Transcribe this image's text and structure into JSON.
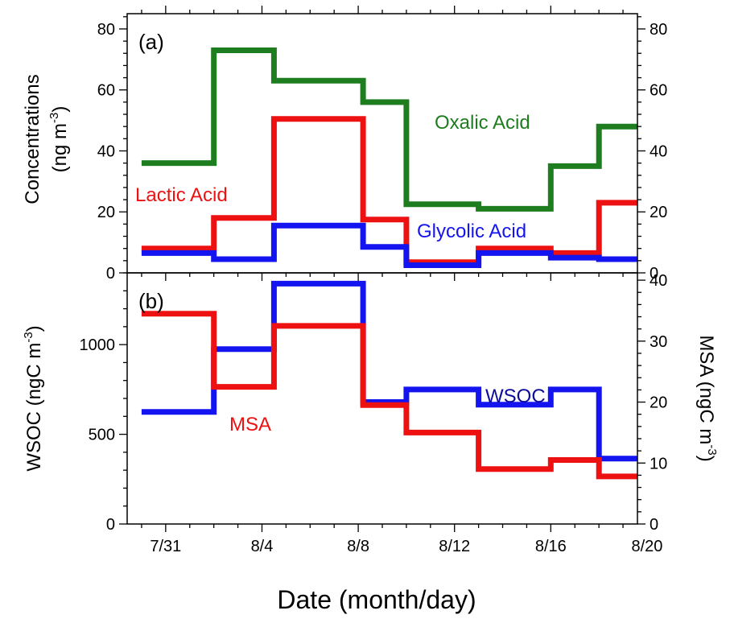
{
  "xlabel": "Date (month/day)",
  "chart_data": [
    {
      "type": "line",
      "panel_label": "(a)",
      "ylabel_lines": [
        "Concentrations",
        "(ng m",
        "-3",
        ")"
      ],
      "ylim": [
        0,
        85
      ],
      "y_ticks": [
        0,
        20,
        40,
        60,
        80
      ],
      "right_ylim": [
        0,
        85
      ],
      "right_y_ticks": [
        0,
        20,
        40,
        60,
        80
      ],
      "xlim": [
        29.4,
        50.6
      ],
      "x_ticks": [
        "7/31",
        "8/4",
        "8/8",
        "8/12",
        "8/16",
        "8/20"
      ],
      "series": [
        {
          "name": "Oxalic Acid",
          "color": "#1e7d1e",
          "steps": [
            [
              30,
              33,
              36
            ],
            [
              33,
              35.5,
              73
            ],
            [
              35.5,
              39.2,
              63
            ],
            [
              39.2,
              41,
              56
            ],
            [
              41,
              44,
              22.5
            ],
            [
              44,
              47,
              21
            ],
            [
              47,
              49,
              35
            ],
            [
              49,
              52,
              48
            ]
          ]
        },
        {
          "name": "Lactic Acid",
          "color": "#ee1111",
          "steps": [
            [
              30,
              33,
              8
            ],
            [
              33,
              35.5,
              18
            ],
            [
              35.5,
              39.2,
              50.5
            ],
            [
              39.2,
              41,
              17.5
            ],
            [
              41,
              44,
              3.5
            ],
            [
              44,
              47,
              8
            ],
            [
              47,
              49,
              6.5
            ],
            [
              49,
              52,
              23
            ]
          ]
        },
        {
          "name": "Glycolic Acid",
          "color": "#1414f0",
          "steps": [
            [
              30,
              33,
              6.5
            ],
            [
              33,
              35.5,
              4.5
            ],
            [
              35.5,
              39.2,
              15.5
            ],
            [
              39.2,
              41,
              8.5
            ],
            [
              41,
              44,
              2.5
            ],
            [
              44,
              47,
              6.5
            ],
            [
              47,
              49,
              5
            ],
            [
              49,
              52,
              4.5
            ]
          ]
        }
      ],
      "annotations": [
        {
          "text": "Oxalic Acid",
          "color": "#1e7d1e"
        },
        {
          "text": "Lactic Acid",
          "color": "#ee1111"
        },
        {
          "text": "Glycolic Acid",
          "color": "#1414f0"
        }
      ]
    },
    {
      "type": "line",
      "panel_label": "(b)",
      "ylabel_lines": [
        "WSOC (ngC m",
        "-3",
        ")"
      ],
      "right_ylabel_lines": [
        "MSA (ngC m",
        "-3",
        ")"
      ],
      "ylim": [
        0,
        1400
      ],
      "y_ticks": [
        0,
        500,
        1000
      ],
      "right_ylim": [
        0,
        41.2
      ],
      "right_y_ticks": [
        0,
        10,
        20,
        30,
        40
      ],
      "xlim": [
        29.4,
        50.6
      ],
      "x_ticks": [
        "7/31",
        "8/4",
        "8/8",
        "8/12",
        "8/16",
        "8/20"
      ],
      "series": [
        {
          "name": "WSOC",
          "color": "#1414f0",
          "axis": "left",
          "steps": [
            [
              30,
              33,
              625
            ],
            [
              33,
              35.5,
              975
            ],
            [
              35.5,
              39.2,
              1340
            ],
            [
              39.2,
              41,
              680
            ],
            [
              41,
              44,
              750
            ],
            [
              44,
              47,
              665
            ],
            [
              47,
              49,
              750
            ],
            [
              49,
              52,
              365
            ]
          ]
        },
        {
          "name": "MSA",
          "color": "#ee1111",
          "axis": "right",
          "steps": [
            [
              30,
              33,
              34.5
            ],
            [
              33,
              35.5,
              22.5
            ],
            [
              35.5,
              39.2,
              32.5
            ],
            [
              39.2,
              41,
              19.5
            ],
            [
              41,
              44,
              15
            ],
            [
              44,
              47,
              9
            ],
            [
              47,
              49,
              10.5
            ],
            [
              49,
              52,
              7.8
            ]
          ]
        }
      ],
      "annotations": [
        {
          "text": "WSOC",
          "color": "#0c0c9c"
        },
        {
          "text": "MSA",
          "color": "#ee1111"
        }
      ]
    }
  ]
}
